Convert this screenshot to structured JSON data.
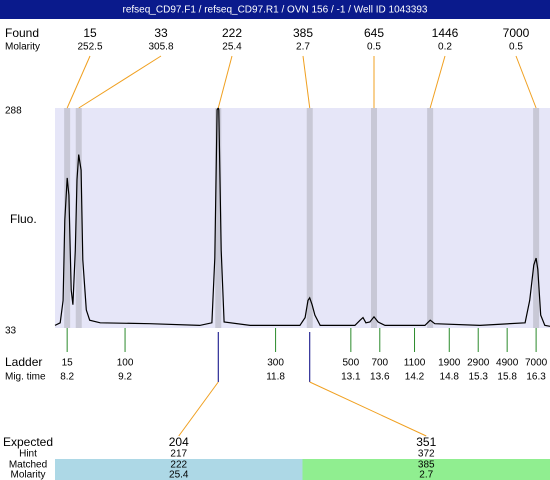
{
  "header": {
    "title": "refseq_CD97.F1 / refseq_CD97.R1 / OVN 156 / -1 / Well ID 1043393"
  },
  "chart_data": {
    "type": "electropherogram",
    "found_label": "Found",
    "molarity_label": "Molarity",
    "y_label": "Fluo.",
    "ylim": [
      33,
      288
    ],
    "yticks": [
      33,
      288
    ],
    "xlim": [
      7.99,
      16.54
    ],
    "found": {
      "sizes": [
        15,
        33,
        222,
        385,
        645,
        1446,
        7000
      ],
      "molarity": [
        252.5,
        305.8,
        25.4,
        2.7,
        0.5,
        0.2,
        0.5
      ],
      "times": [
        8.2,
        8.4,
        10.81,
        12.39,
        13.5,
        14.47,
        16.3
      ]
    },
    "ladder": {
      "label": "Ladder",
      "time_label": "Mig. time",
      "sizes": [
        15,
        100,
        300,
        500,
        700,
        1100,
        1900,
        2900,
        4900,
        7000
      ],
      "times": [
        8.2,
        9.2,
        11.8,
        13.1,
        13.6,
        14.2,
        14.8,
        15.3,
        15.8,
        16.3
      ]
    },
    "trace": {
      "color": "#000000",
      "x": [
        7.99,
        8.08,
        8.13,
        8.16,
        8.2,
        8.23,
        8.27,
        8.3,
        8.34,
        8.37,
        8.4,
        8.44,
        8.47,
        8.53,
        8.59,
        8.77,
        9.63,
        10.49,
        10.7,
        10.75,
        10.79,
        10.81,
        10.82,
        10.86,
        10.91,
        11.36,
        12.22,
        12.31,
        12.36,
        12.39,
        12.43,
        12.48,
        12.57,
        13.17,
        13.26,
        13.31,
        13.36,
        13.43,
        13.5,
        13.57,
        13.69,
        14.38,
        14.47,
        14.55,
        15.33,
        16.11,
        16.19,
        16.26,
        16.3,
        16.33,
        16.38,
        16.45,
        16.54
      ],
      "values": [
        36,
        39,
        65,
        158,
        207,
        187,
        77,
        60,
        123,
        205,
        234,
        216,
        112,
        54,
        42,
        39,
        38,
        36,
        39,
        114,
        286,
        288,
        286,
        123,
        40,
        36,
        36,
        45,
        65,
        68,
        60,
        48,
        36,
        36,
        42,
        45,
        39,
        40,
        46,
        40,
        36,
        36,
        42,
        38,
        36,
        39,
        65,
        106,
        114,
        101,
        48,
        36,
        35
      ]
    },
    "expected": {
      "labels": [
        "Expected",
        "Hint",
        "Matched",
        "Molarity"
      ],
      "columns": [
        {
          "expected": 204,
          "hint": 217,
          "matched": 222,
          "molarity": 25.4,
          "color": "#add8e6"
        },
        {
          "expected": 351,
          "hint": 372,
          "matched": 385,
          "molarity": 2.7,
          "color": "#90ee90"
        }
      ]
    }
  }
}
